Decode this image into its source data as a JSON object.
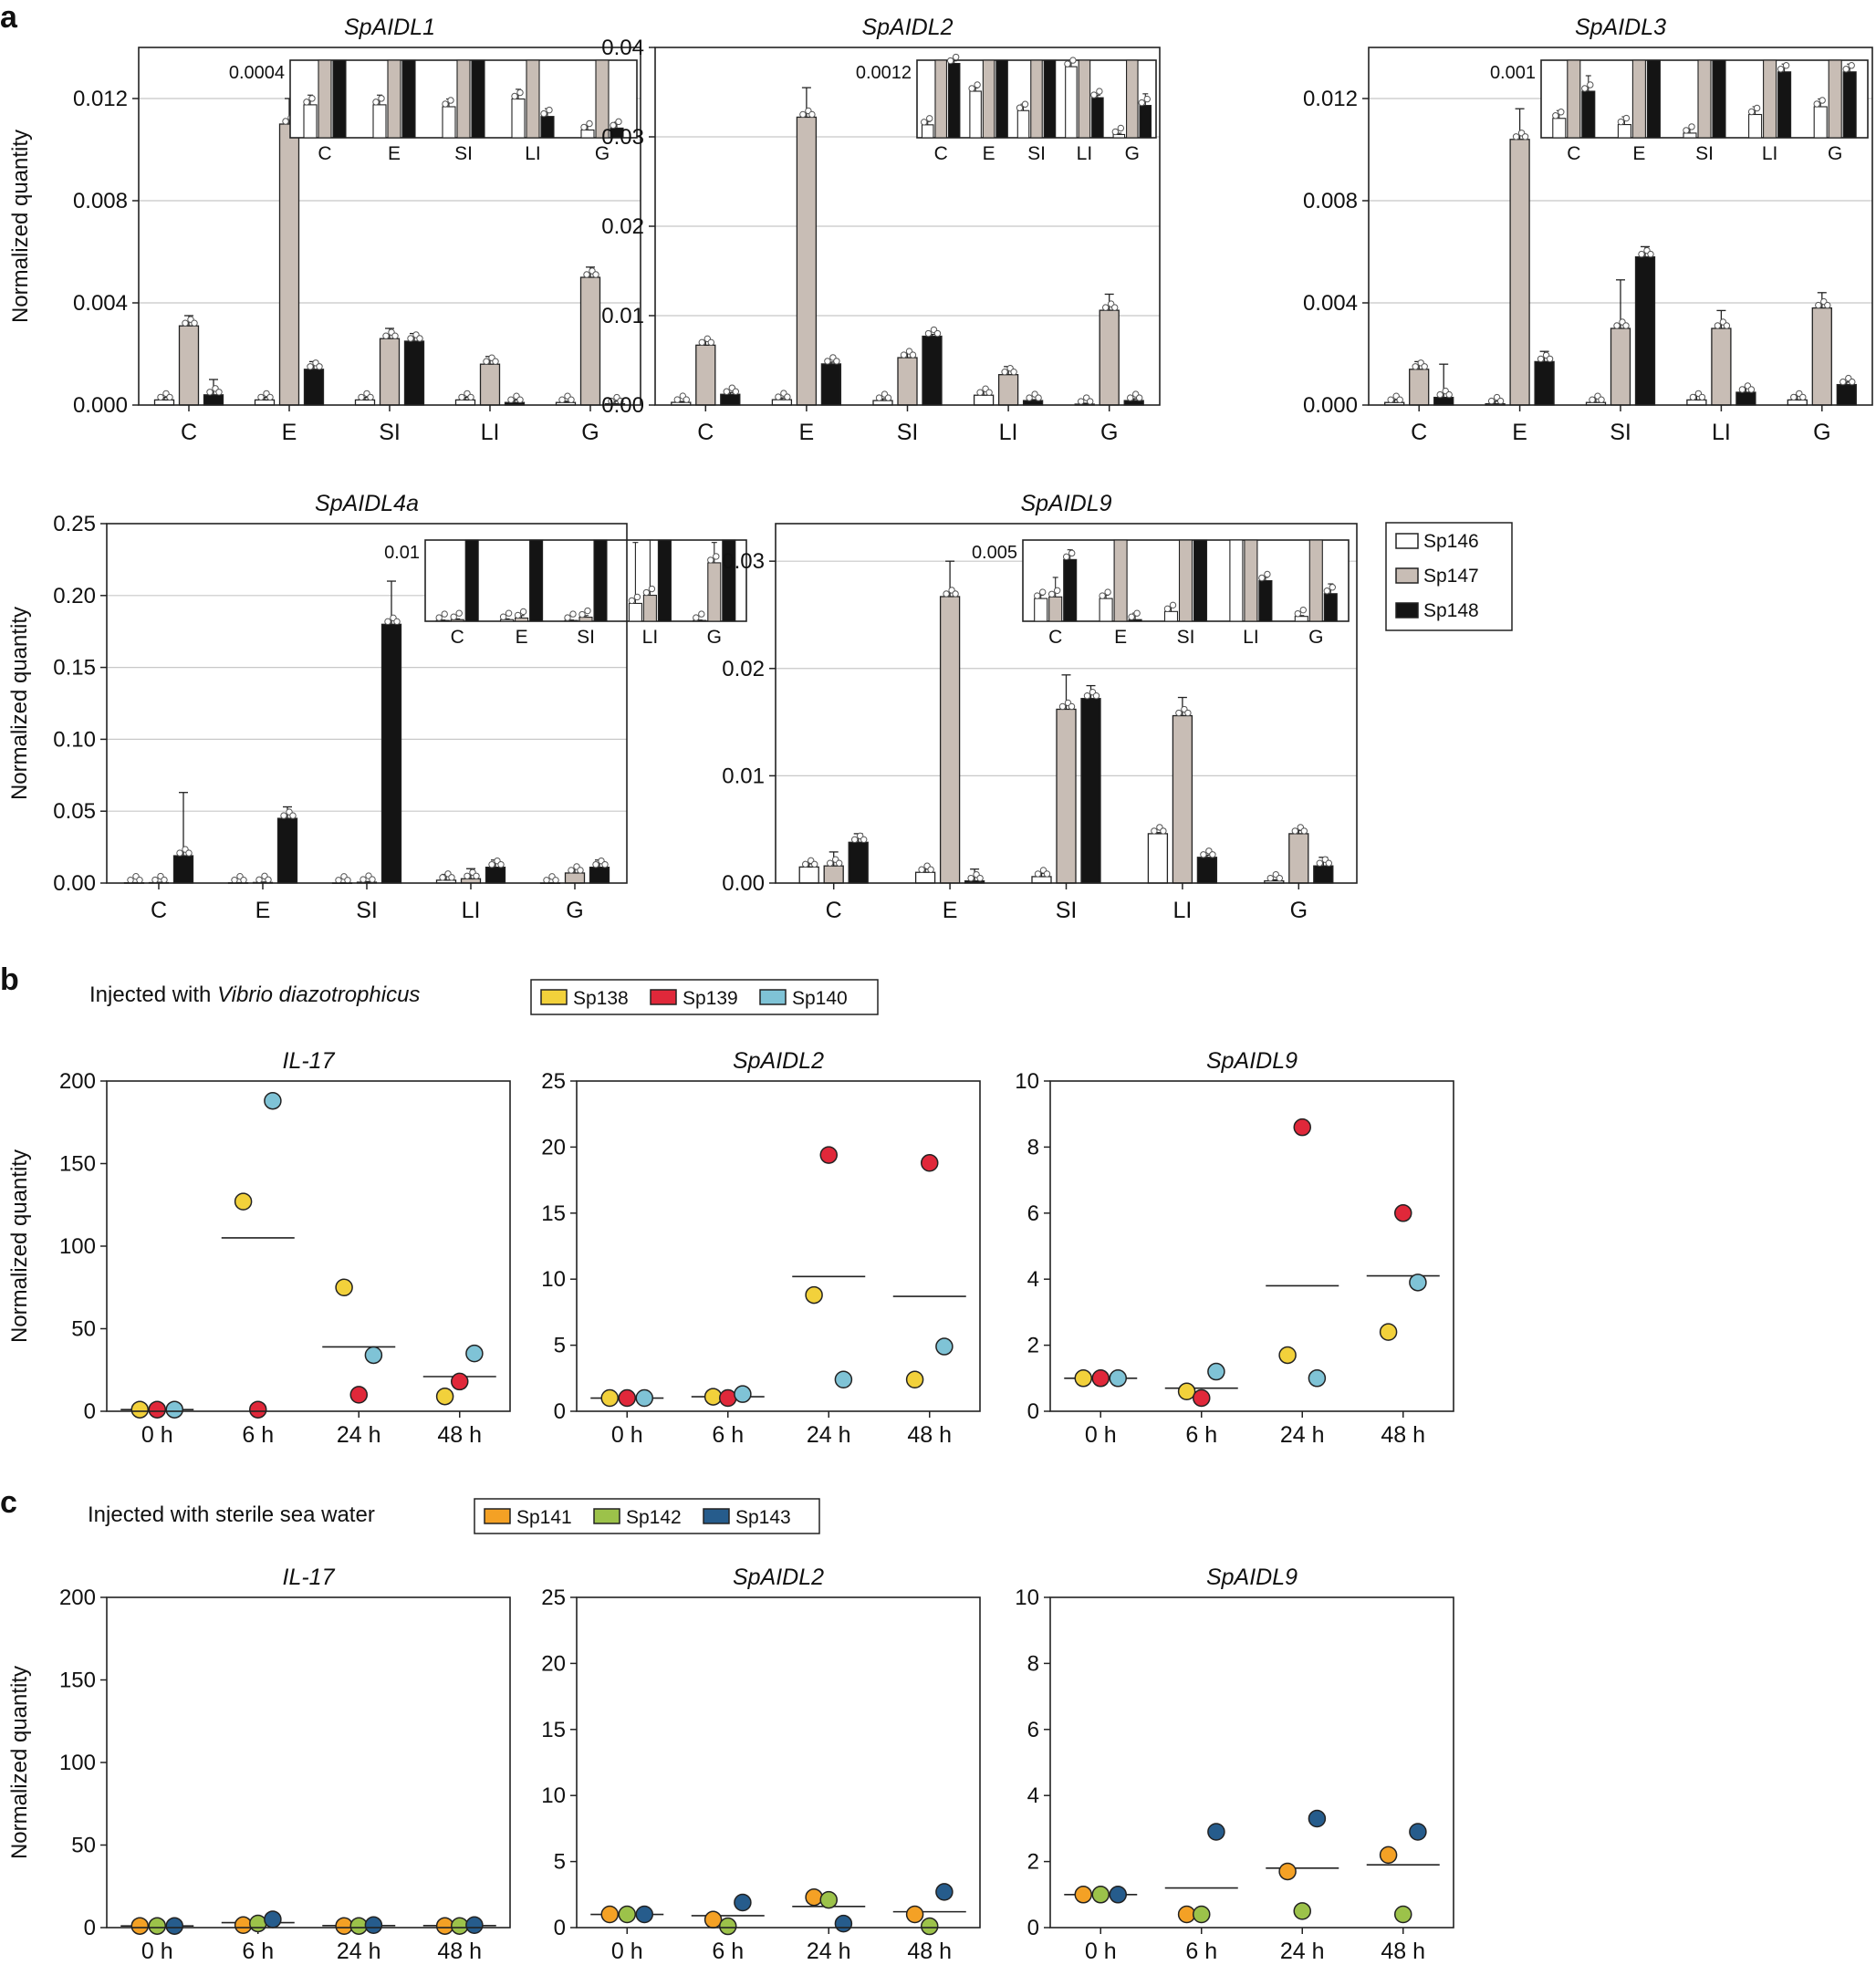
{
  "panel_labels": [
    "a",
    "b",
    "c"
  ],
  "colors": {
    "Sp146": "#ffffff",
    "Sp147": "#c8bdb5",
    "Sp148": "#141414",
    "Sp138": "#f2d13b",
    "Sp139": "#e0283a",
    "Sp140": "#7fc3d6",
    "Sp141": "#f4a125",
    "Sp142": "#9cc24a",
    "Sp143": "#265c8c",
    "grid": "#c8c8c8",
    "frame": "#222222"
  },
  "legend_a": {
    "items": [
      "Sp146",
      "Sp147",
      "Sp148"
    ]
  },
  "legend_b": {
    "title_prefix": "Injected with ",
    "title_species": "Vibrio diazotrophicus",
    "items": [
      "Sp138",
      "Sp139",
      "Sp140"
    ]
  },
  "legend_c": {
    "title": "Injected with sterile sea water",
    "items": [
      "Sp141",
      "Sp142",
      "Sp143"
    ]
  },
  "chart_data": [
    {
      "id": "a1",
      "type": "bar",
      "title": "SpAIDL1",
      "ylabel": "Normalized quantity",
      "categories": [
        "C",
        "E",
        "SI",
        "LI",
        "G"
      ],
      "ylim": [
        0,
        0.014
      ],
      "yticks": [
        0,
        0.004,
        0.008,
        0.012
      ],
      "ytick_labels": [
        "0.000",
        "0.004",
        "0.008",
        "0.012"
      ],
      "series": [
        {
          "name": "Sp146",
          "values": [
            0.0002,
            0.0002,
            0.0002,
            0.0002,
            0.0001
          ],
          "err": [
            0.0001,
            0.0001,
            0.0001,
            0.0001,
            5e-05
          ]
        },
        {
          "name": "Sp147",
          "values": [
            0.0031,
            0.011,
            0.0026,
            0.0016,
            0.005
          ],
          "err": [
            0.0004,
            0.001,
            0.0004,
            0.0003,
            0.0004
          ]
        },
        {
          "name": "Sp148",
          "values": [
            0.0004,
            0.0014,
            0.0025,
            0.0001,
            5e-05
          ],
          "err": [
            0.0006,
            0.0003,
            0.0003,
            0.0001,
            0.0001
          ]
        }
      ],
      "inset": {
        "label": "0.0004",
        "ymax": 0.0004,
        "values": [
          [
            0.00017,
            0.00017,
            0.00016,
            0.0002,
            4e-05
          ],
          [
            0.0004,
            0.0004,
            0.0004,
            0.0004,
            0.0004
          ],
          [
            0.0004,
            0.0004,
            0.0004,
            0.00011,
            5e-05
          ]
        ],
        "err": [
          [
            5e-05,
            5e-05,
            4e-05,
            5e-05,
            2e-05
          ],
          [
            0,
            0,
            0,
            0,
            0
          ],
          [
            0,
            0,
            0,
            4e-05,
            3e-05
          ]
        ]
      }
    },
    {
      "id": "a2",
      "type": "bar",
      "title": "SpAIDL2",
      "ylabel": "",
      "categories": [
        "C",
        "E",
        "SI",
        "LI",
        "G"
      ],
      "ylim": [
        0,
        0.04
      ],
      "yticks": [
        0,
        0.01,
        0.02,
        0.03,
        0.04
      ],
      "ytick_labels": [
        "0.00",
        "0.01",
        "0.02",
        "0.03",
        "0.04"
      ],
      "series": [
        {
          "name": "Sp146",
          "values": [
            0.0003,
            0.0006,
            0.0005,
            0.0011,
            0.0001
          ],
          "err": [
            0.0001,
            0.0002,
            0.0002,
            0.0005,
            0.0001
          ]
        },
        {
          "name": "Sp147",
          "values": [
            0.0067,
            0.0322,
            0.0053,
            0.0034,
            0.0106
          ],
          "err": [
            0.0005,
            0.0033,
            0.0005,
            0.0009,
            0.0018
          ]
        },
        {
          "name": "Sp148",
          "values": [
            0.0012,
            0.0046,
            0.0077,
            0.0005,
            0.0005
          ],
          "err": [
            0.0002,
            0.0002,
            0.0002,
            0.0001,
            0.0002
          ]
        }
      ],
      "inset": {
        "label": "0.0012",
        "ymax": 0.0012,
        "values": [
          [
            0.0002,
            0.00072,
            0.00042,
            0.0011,
            5e-05
          ],
          [
            0.0012,
            0.0012,
            0.0012,
            0.0012,
            0.0012
          ],
          [
            0.00115,
            0.0012,
            0.0012,
            0.00062,
            0.0005
          ]
        ],
        "err": [
          [
            5e-05,
            5e-05,
            0.0001,
            0.0001,
            2e-05
          ],
          [
            0,
            0,
            0,
            0,
            0
          ],
          [
            4e-05,
            0,
            0,
            4e-05,
            0.00018
          ]
        ]
      }
    },
    {
      "id": "a3",
      "type": "bar",
      "title": "SpAIDL3",
      "ylabel": "",
      "categories": [
        "C",
        "E",
        "SI",
        "LI",
        "G"
      ],
      "ylim": [
        0,
        0.014
      ],
      "yticks": [
        0,
        0.004,
        0.008,
        0.012
      ],
      "ytick_labels": [
        "0.000",
        "0.004",
        "0.008",
        "0.012"
      ],
      "series": [
        {
          "name": "Sp146",
          "values": [
            0.0001,
            5e-05,
            0.0001,
            0.0002,
            0.0002
          ],
          "err": [
            0.0001,
            0.0001,
            0.0002,
            0.0002,
            0.0002
          ]
        },
        {
          "name": "Sp147",
          "values": [
            0.0014,
            0.0104,
            0.003,
            0.003,
            0.0038
          ],
          "err": [
            0.0003,
            0.0012,
            0.0019,
            0.0007,
            0.0006
          ]
        },
        {
          "name": "Sp148",
          "values": [
            0.0003,
            0.0017,
            0.0058,
            0.0005,
            0.0008
          ],
          "err": [
            0.0013,
            0.0004,
            0.0004,
            0.0002,
            0.0001
          ]
        }
      ],
      "inset": {
        "label": "0.001",
        "ymax": 0.001,
        "values": [
          [
            0.00025,
            0.00017,
            6e-05,
            0.0003,
            0.0004
          ],
          [
            0.001,
            0.001,
            0.001,
            0.001,
            0.001
          ],
          [
            0.0006,
            0.001,
            0.001,
            0.00085,
            0.00085
          ]
        ],
        "err": [
          [
            0.0001,
            0.0001,
            5e-05,
            0.0001,
            0.0001
          ],
          [
            0,
            0,
            0,
            0,
            0
          ],
          [
            0.0002,
            0,
            0,
            0.0001,
            0.0001
          ]
        ]
      }
    },
    {
      "id": "a4",
      "type": "bar",
      "title": "SpAIDL4a",
      "ylabel": "Normalized quantity",
      "categories": [
        "C",
        "E",
        "SI",
        "LI",
        "G"
      ],
      "ylim": [
        0,
        0.25
      ],
      "yticks": [
        0,
        0.05,
        0.1,
        0.15,
        0.2,
        0.25
      ],
      "ytick_labels": [
        "0.00",
        "0.05",
        "0.10",
        "0.15",
        "0.20",
        "0.25"
      ],
      "series": [
        {
          "name": "Sp146",
          "values": [
            0.0002,
            0.0002,
            0.0001,
            0.002,
            0.0001
          ],
          "err": [
            0.0001,
            0.0001,
            0.0001,
            0.004,
            0.0001
          ]
        },
        {
          "name": "Sp147",
          "values": [
            0.0003,
            0.0004,
            0.0006,
            0.003,
            0.007
          ],
          "err": [
            0.0002,
            0.0003,
            0.0004,
            0.007,
            0.003
          ]
        },
        {
          "name": "Sp148",
          "values": [
            0.019,
            0.045,
            0.18,
            0.011,
            0.011
          ],
          "err": [
            0.044,
            0.008,
            0.03,
            0.005,
            0.005
          ]
        }
      ],
      "inset": {
        "label": "0.01",
        "ymax": 0.01,
        "values": [
          [
            0.0001,
            0.0002,
            0.0001,
            0.0022,
            0.0001
          ],
          [
            0.0002,
            0.0004,
            0.0005,
            0.0032,
            0.0072
          ],
          [
            0.01,
            0.01,
            0.01,
            0.01,
            0.01
          ]
        ],
        "err": [
          [
            5e-05,
            0.0001,
            5e-05,
            0.0075,
            5e-05
          ],
          [
            0.0001,
            0.0003,
            0.0002,
            0.0075,
            0.0025
          ],
          [
            0,
            0,
            0,
            0,
            0
          ]
        ]
      }
    },
    {
      "id": "a5",
      "type": "bar",
      "title": "SpAIDL9",
      "ylabel": "",
      "categories": [
        "C",
        "E",
        "SI",
        "LI",
        "G"
      ],
      "ylim": [
        0,
        0.0335
      ],
      "yticks": [
        0,
        0.01,
        0.02,
        0.03
      ],
      "ytick_labels": [
        "0.00",
        "0.01",
        "0.02",
        "0.03"
      ],
      "series": [
        {
          "name": "Sp146",
          "values": [
            0.0015,
            0.001,
            0.0006,
            0.0046,
            0.0002
          ],
          "err": [
            0.0003,
            0.0003,
            0.0003,
            0.0001,
            0.0001
          ]
        },
        {
          "name": "Sp147",
          "values": [
            0.0016,
            0.0267,
            0.0162,
            0.0156,
            0.0046
          ],
          "err": [
            0.0013,
            0.0033,
            0.0032,
            0.0017,
            0.0003
          ]
        },
        {
          "name": "Sp148",
          "values": [
            0.0038,
            0.0002,
            0.0172,
            0.0024,
            0.0016
          ],
          "err": [
            0.0008,
            0.0011,
            0.0012,
            0.0002,
            0.0008
          ]
        }
      ],
      "inset": {
        "label": "0.005",
        "ymax": 0.005,
        "values": [
          [
            0.0014,
            0.0014,
            0.0006,
            0.005,
            0.0003
          ],
          [
            0.0015,
            0.005,
            0.005,
            0.005,
            0.005
          ],
          [
            0.0038,
            0.0001,
            0.005,
            0.0025,
            0.0017
          ]
        ],
        "err": [
          [
            0.0002,
            0.0002,
            0.0003,
            0,
            5e-05
          ],
          [
            0.0012,
            0,
            0,
            0,
            0
          ],
          [
            0.0006,
            0.0004,
            0,
            0.0002,
            0.0006
          ]
        ]
      }
    },
    {
      "id": "b1",
      "type": "scatter",
      "title": "IL-17",
      "ylabel": "Normalized quantity",
      "categories": [
        "0 h",
        "6 h",
        "24 h",
        "48 h"
      ],
      "ylim": [
        0,
        200
      ],
      "yticks": [
        0,
        50,
        100,
        150,
        200
      ],
      "series": [
        {
          "name": "Sp138",
          "values": [
            1,
            127,
            75,
            9
          ]
        },
        {
          "name": "Sp139",
          "values": [
            1,
            1,
            10,
            18
          ]
        },
        {
          "name": "Sp140",
          "values": [
            1,
            188,
            34,
            35
          ]
        }
      ],
      "means": [
        1,
        105,
        39,
        21
      ]
    },
    {
      "id": "b2",
      "type": "scatter",
      "title": "SpAIDL2",
      "ylabel": "",
      "categories": [
        "0 h",
        "6 h",
        "24 h",
        "48 h"
      ],
      "ylim": [
        0,
        25
      ],
      "yticks": [
        0,
        5,
        10,
        15,
        20,
        25
      ],
      "series": [
        {
          "name": "Sp138",
          "values": [
            1,
            1.1,
            8.8,
            2.4
          ]
        },
        {
          "name": "Sp139",
          "values": [
            1,
            1,
            19.4,
            18.8
          ]
        },
        {
          "name": "Sp140",
          "values": [
            1,
            1.3,
            2.4,
            4.9
          ]
        }
      ],
      "means": [
        1,
        1.1,
        10.2,
        8.7
      ]
    },
    {
      "id": "b3",
      "type": "scatter",
      "title": "SpAIDL9",
      "ylabel": "",
      "categories": [
        "0 h",
        "6 h",
        "24 h",
        "48 h"
      ],
      "ylim": [
        0,
        10
      ],
      "yticks": [
        0,
        2,
        4,
        6,
        8,
        10
      ],
      "series": [
        {
          "name": "Sp138",
          "values": [
            1,
            0.6,
            1.7,
            2.4
          ]
        },
        {
          "name": "Sp139",
          "values": [
            1,
            0.4,
            8.6,
            6.0
          ]
        },
        {
          "name": "Sp140",
          "values": [
            1,
            1.2,
            1.0,
            3.9
          ]
        }
      ],
      "means": [
        1,
        0.7,
        3.8,
        4.1
      ]
    },
    {
      "id": "c1",
      "type": "scatter",
      "title": "IL-17",
      "ylabel": "Normalized quantity",
      "categories": [
        "0 h",
        "6 h",
        "24 h",
        "48 h"
      ],
      "ylim": [
        0,
        200
      ],
      "yticks": [
        0,
        50,
        100,
        150,
        200
      ],
      "series": [
        {
          "name": "Sp141",
          "values": [
            1,
            1.5,
            1,
            1
          ]
        },
        {
          "name": "Sp142",
          "values": [
            1,
            2.5,
            1,
            1
          ]
        },
        {
          "name": "Sp143",
          "values": [
            1,
            5,
            1.5,
            1.5
          ]
        }
      ],
      "means": [
        1,
        3,
        1.2,
        1.2
      ]
    },
    {
      "id": "c2",
      "type": "scatter",
      "title": "SpAIDL2",
      "ylabel": "",
      "categories": [
        "0 h",
        "6 h",
        "24 h",
        "48 h"
      ],
      "ylim": [
        0,
        25
      ],
      "yticks": [
        0,
        5,
        10,
        15,
        20,
        25
      ],
      "series": [
        {
          "name": "Sp141",
          "values": [
            1,
            0.6,
            2.3,
            1.0
          ]
        },
        {
          "name": "Sp142",
          "values": [
            1,
            0.1,
            2.1,
            0.1
          ]
        },
        {
          "name": "Sp143",
          "values": [
            1,
            1.9,
            0.3,
            2.7
          ]
        }
      ],
      "means": [
        1,
        0.9,
        1.6,
        1.2
      ]
    },
    {
      "id": "c3",
      "type": "scatter",
      "title": "SpAIDL9",
      "ylabel": "",
      "categories": [
        "0 h",
        "6 h",
        "24 h",
        "48 h"
      ],
      "ylim": [
        0,
        10
      ],
      "yticks": [
        0,
        2,
        4,
        6,
        8,
        10
      ],
      "series": [
        {
          "name": "Sp141",
          "values": [
            1,
            0.4,
            1.7,
            2.2
          ]
        },
        {
          "name": "Sp142",
          "values": [
            1,
            0.4,
            0.5,
            0.4
          ]
        },
        {
          "name": "Sp143",
          "values": [
            1,
            2.9,
            3.3,
            2.9
          ]
        }
      ],
      "means": [
        1,
        1.2,
        1.8,
        1.9
      ]
    }
  ]
}
